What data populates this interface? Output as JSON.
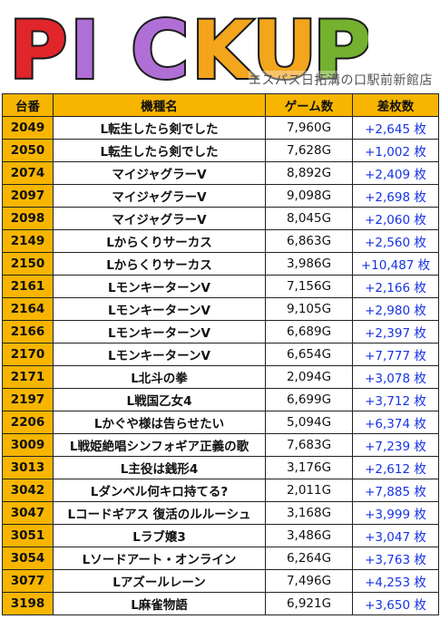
{
  "banner": {
    "logo_letters": [
      "P",
      "I",
      "C",
      "K",
      "U",
      "P"
    ],
    "logo_colors": [
      "#e0252b",
      "#b06fd6",
      "#b06fd6",
      "#f3a51c",
      "#f3a51c",
      "#74b12f"
    ],
    "store_name": "エスパス日拓溝の口駅前新館店"
  },
  "table": {
    "headers": [
      "台番",
      "機種名",
      "ゲーム数",
      "差枚数"
    ],
    "rows": [
      {
        "id": "2049",
        "name": "L転生したら剣でした",
        "games": "7,960G",
        "diff": "+2,645 枚"
      },
      {
        "id": "2050",
        "name": "L転生したら剣でした",
        "games": "7,628G",
        "diff": "+1,002 枚"
      },
      {
        "id": "2074",
        "name": "マイジャグラーV",
        "games": "8,892G",
        "diff": "+2,409 枚"
      },
      {
        "id": "2097",
        "name": "マイジャグラーV",
        "games": "9,098G",
        "diff": "+2,698 枚"
      },
      {
        "id": "2098",
        "name": "マイジャグラーV",
        "games": "8,045G",
        "diff": "+2,060 枚"
      },
      {
        "id": "2149",
        "name": "Lからくりサーカス",
        "games": "6,863G",
        "diff": "+2,560 枚"
      },
      {
        "id": "2150",
        "name": "Lからくりサーカス",
        "games": "3,986G",
        "diff": "+10,487 枚"
      },
      {
        "id": "2161",
        "name": "LモンキーターンV",
        "games": "7,156G",
        "diff": "+2,166 枚"
      },
      {
        "id": "2164",
        "name": "LモンキーターンV",
        "games": "9,105G",
        "diff": "+2,980 枚"
      },
      {
        "id": "2166",
        "name": "LモンキーターンV",
        "games": "6,689G",
        "diff": "+2,397 枚"
      },
      {
        "id": "2170",
        "name": "LモンキーターンV",
        "games": "6,654G",
        "diff": "+7,777 枚"
      },
      {
        "id": "2171",
        "name": "L北斗の拳",
        "games": "2,094G",
        "diff": "+3,078 枚"
      },
      {
        "id": "2197",
        "name": "L戦国乙女4",
        "games": "6,699G",
        "diff": "+3,712 枚"
      },
      {
        "id": "2206",
        "name": "Lかぐや様は告らせたい",
        "games": "5,094G",
        "diff": "+6,374 枚"
      },
      {
        "id": "3009",
        "name": "L戦姫絶唱シンフォギア正義の歌",
        "games": "7,683G",
        "diff": "+7,239 枚"
      },
      {
        "id": "3013",
        "name": "L主役は銭形4",
        "games": "3,176G",
        "diff": "+2,612 枚"
      },
      {
        "id": "3042",
        "name": "Lダンベル何キロ持てる?",
        "games": "2,011G",
        "diff": "+7,885 枚"
      },
      {
        "id": "3047",
        "name": "Lコードギアス 復活のルルーシュ",
        "games": "3,168G",
        "diff": "+3,999 枚"
      },
      {
        "id": "3051",
        "name": "Lラブ嬢3",
        "games": "3,486G",
        "diff": "+3,047 枚"
      },
      {
        "id": "3054",
        "name": "Lソードアート・オンライン",
        "games": "6,264G",
        "diff": "+3,763 枚"
      },
      {
        "id": "3077",
        "name": "Lアズールレーン",
        "games": "7,496G",
        "diff": "+4,253 枚"
      },
      {
        "id": "3198",
        "name": "L麻雀物語",
        "games": "6,921G",
        "diff": "+3,650 枚"
      }
    ]
  }
}
